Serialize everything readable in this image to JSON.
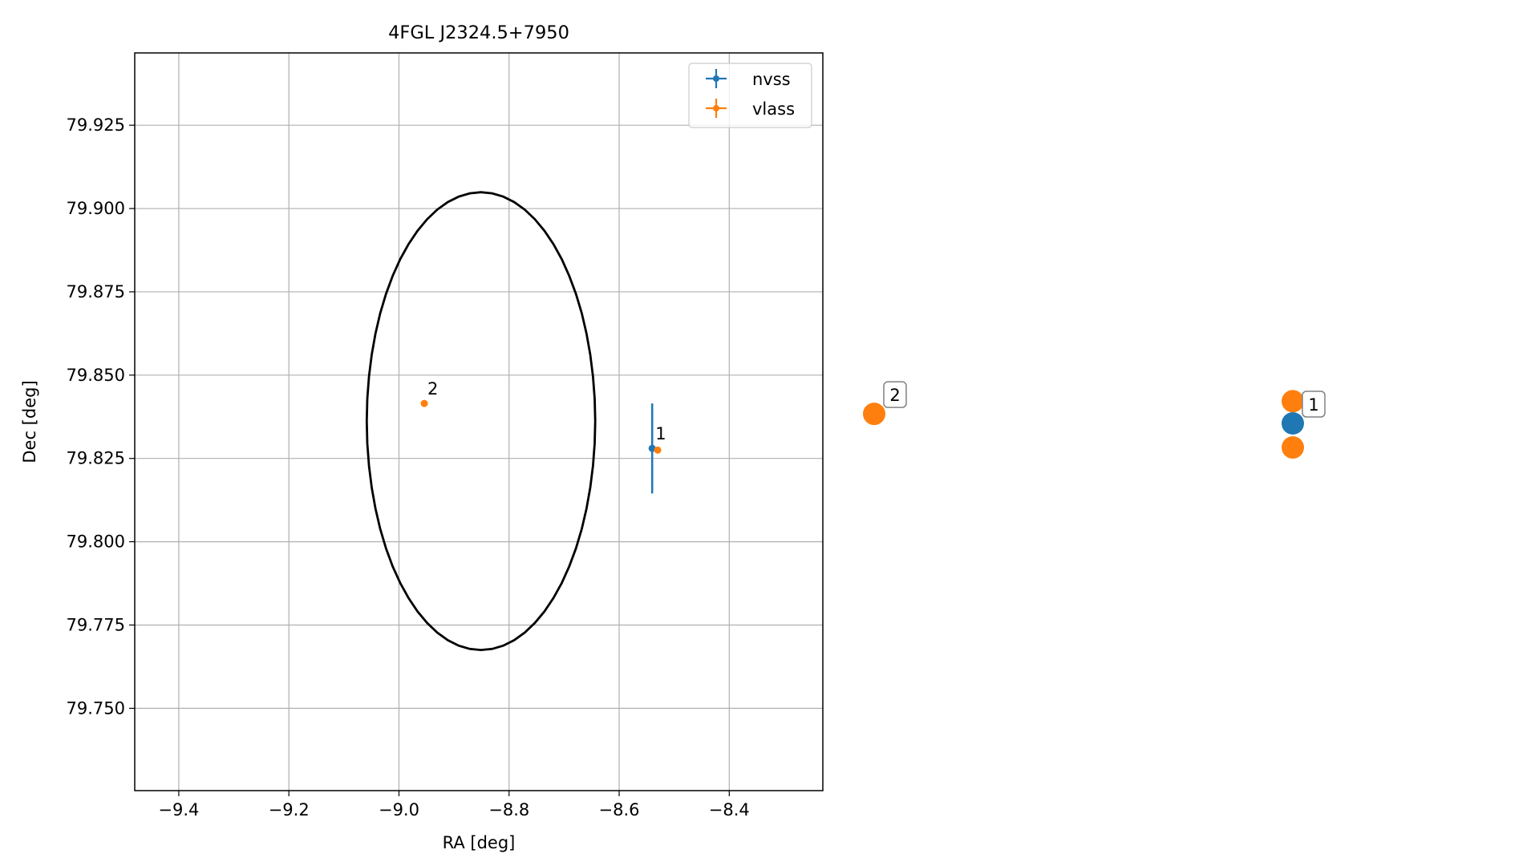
{
  "chart_data": [
    {
      "type": "scatter",
      "title": "4FGL J2324.5+7950",
      "xlabel": "RA [deg]",
      "ylabel": "Dec [deg]",
      "xlim": [
        -9.48,
        -8.23
      ],
      "ylim": [
        79.7253,
        79.9467
      ],
      "grid": true,
      "x_ticks": [
        -9.4,
        -9.2,
        -9.0,
        -8.8,
        -8.6,
        -8.4
      ],
      "x_tick_labels": [
        "−9.4",
        "−9.2",
        "−9.0",
        "−8.8",
        "−8.6",
        "−8.4"
      ],
      "y_ticks": [
        79.75,
        79.775,
        79.8,
        79.825,
        79.85,
        79.875,
        79.9,
        79.925
      ],
      "y_tick_labels": [
        "79.750",
        "79.775",
        "79.800",
        "79.825",
        "79.850",
        "79.875",
        "79.900",
        "79.925"
      ],
      "legend_placement": "top-right",
      "colors": {
        "nvss": "#1f77b4",
        "vlass": "#ff7f0e",
        "ellipse": "#000000"
      },
      "series": [
        {
          "name": "nvss",
          "points": [
            {
              "x": -8.54,
              "y": 79.828,
              "yerr": 0.0135,
              "label": "1"
            }
          ]
        },
        {
          "name": "vlass",
          "points": [
            {
              "x": -8.53,
              "y": 79.8275,
              "label": "1"
            },
            {
              "x": -8.954,
              "y": 79.8415,
              "label": "2"
            }
          ]
        }
      ],
      "ellipse": {
        "center_x": -8.851,
        "center_y": 79.8362,
        "radius_x": 0.2075,
        "radius_y": 0.0687
      }
    },
    {
      "type": "scatter",
      "grid": false,
      "axes_visible": false,
      "series": [
        {
          "name": "nvss",
          "points": [
            {
              "x": 1.0,
              "y": 0.0,
              "label": "1"
            }
          ]
        },
        {
          "name": "vlass",
          "points": [
            {
              "x": 1.0,
              "y": 0.35
            },
            {
              "x": 1.0,
              "y": -0.38
            },
            {
              "x": 0.0,
              "y": 0.15,
              "label": "2"
            }
          ]
        }
      ]
    }
  ]
}
